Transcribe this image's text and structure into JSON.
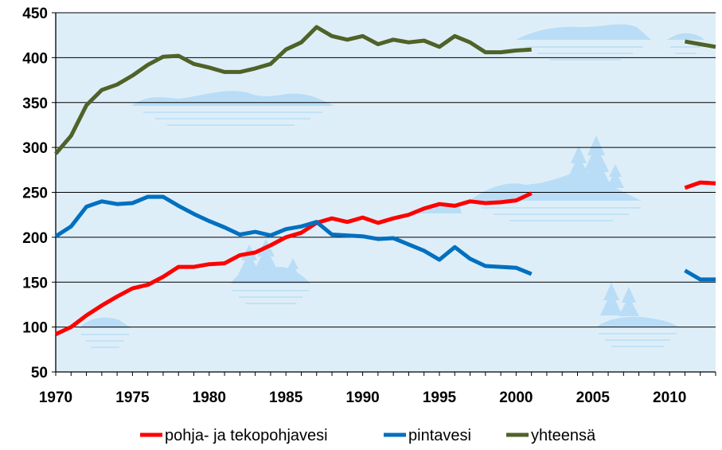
{
  "chart_data": {
    "type": "line",
    "title": "",
    "xlabel": "",
    "ylabel": "",
    "xlim": [
      1970,
      2013
    ],
    "ylim": [
      50,
      450
    ],
    "x_ticks": [
      1970,
      1975,
      1980,
      1985,
      1990,
      1995,
      2000,
      2005,
      2010
    ],
    "y_ticks": [
      50,
      100,
      150,
      200,
      250,
      300,
      350,
      400,
      450
    ],
    "grid": true,
    "legend_position": "bottom",
    "series": [
      {
        "name": "pohja- ja tekopohjavesi",
        "color": "#ff0000",
        "segments": [
          [
            [
              1970,
              92
            ],
            [
              1971,
              100
            ],
            [
              1972,
              113
            ],
            [
              1973,
              124
            ],
            [
              1974,
              134
            ],
            [
              1975,
              143
            ],
            [
              1976,
              147
            ],
            [
              1977,
              156
            ],
            [
              1978,
              167
            ],
            [
              1979,
              167
            ],
            [
              1980,
              170
            ],
            [
              1981,
              171
            ],
            [
              1982,
              180
            ],
            [
              1983,
              183
            ],
            [
              1984,
              191
            ],
            [
              1985,
              200
            ],
            [
              1986,
              205
            ],
            [
              1987,
              216
            ],
            [
              1988,
              221
            ],
            [
              1989,
              217
            ],
            [
              1990,
              222
            ],
            [
              1991,
              216
            ],
            [
              1992,
              221
            ],
            [
              1993,
              225
            ],
            [
              1994,
              232
            ],
            [
              1995,
              237
            ],
            [
              1996,
              235
            ],
            [
              1997,
              240
            ],
            [
              1998,
              238
            ],
            [
              1999,
              239
            ],
            [
              2000,
              241
            ],
            [
              2001,
              249
            ]
          ],
          [
            [
              2011,
              255
            ],
            [
              2012,
              261
            ],
            [
              2013,
              260
            ]
          ]
        ]
      },
      {
        "name": "pintavesi",
        "color": "#0070c0",
        "segments": [
          [
            [
              1970,
              201
            ],
            [
              1971,
              212
            ],
            [
              1972,
              234
            ],
            [
              1973,
              240
            ],
            [
              1974,
              237
            ],
            [
              1975,
              238
            ],
            [
              1976,
              245
            ],
            [
              1977,
              245
            ],
            [
              1978,
              235
            ],
            [
              1979,
              226
            ],
            [
              1980,
              218
            ],
            [
              1981,
              211
            ],
            [
              1982,
              203
            ],
            [
              1983,
              206
            ],
            [
              1984,
              202
            ],
            [
              1985,
              209
            ],
            [
              1986,
              212
            ],
            [
              1987,
              217
            ],
            [
              1988,
              203
            ],
            [
              1989,
              202
            ],
            [
              1990,
              201
            ],
            [
              1991,
              198
            ],
            [
              1992,
              199
            ],
            [
              1993,
              192
            ],
            [
              1994,
              185
            ],
            [
              1995,
              175
            ],
            [
              1996,
              189
            ],
            [
              1997,
              176
            ],
            [
              1998,
              168
            ],
            [
              1999,
              167
            ],
            [
              2000,
              166
            ],
            [
              2001,
              159
            ]
          ],
          [
            [
              2011,
              163
            ],
            [
              2012,
              153
            ],
            [
              2013,
              153
            ]
          ]
        ]
      },
      {
        "name": "yhteensä",
        "color": "#4f6228",
        "segments": [
          [
            [
              1970,
              293
            ],
            [
              1971,
              313
            ],
            [
              1972,
              347
            ],
            [
              1973,
              364
            ],
            [
              1974,
              370
            ],
            [
              1975,
              380
            ],
            [
              1976,
              392
            ],
            [
              1977,
              401
            ],
            [
              1978,
              402
            ],
            [
              1979,
              393
            ],
            [
              1980,
              389
            ],
            [
              1981,
              384
            ],
            [
              1982,
              384
            ],
            [
              1983,
              388
            ],
            [
              1984,
              393
            ],
            [
              1985,
              409
            ],
            [
              1986,
              417
            ],
            [
              1987,
              434
            ],
            [
              1988,
              424
            ],
            [
              1989,
              420
            ],
            [
              1990,
              424
            ],
            [
              1991,
              415
            ],
            [
              1992,
              420
            ],
            [
              1993,
              417
            ],
            [
              1994,
              419
            ],
            [
              1995,
              412
            ],
            [
              1996,
              424
            ],
            [
              1997,
              417
            ],
            [
              1998,
              406
            ],
            [
              1999,
              406
            ],
            [
              2000,
              408
            ],
            [
              2001,
              409
            ]
          ],
          [
            [
              2011,
              418
            ],
            [
              2012,
              415
            ],
            [
              2013,
              412
            ]
          ]
        ]
      }
    ]
  },
  "legend": {
    "items": [
      {
        "label": "pohja- ja tekopohjavesi",
        "color": "#ff0000"
      },
      {
        "label": "pintavesi",
        "color": "#0070c0"
      },
      {
        "label": "yhteensä",
        "color": "#4f6228"
      }
    ]
  },
  "colors": {
    "plot_background": "#deeef8",
    "landscape": "#b9ddf6",
    "gridline": "#000000"
  }
}
